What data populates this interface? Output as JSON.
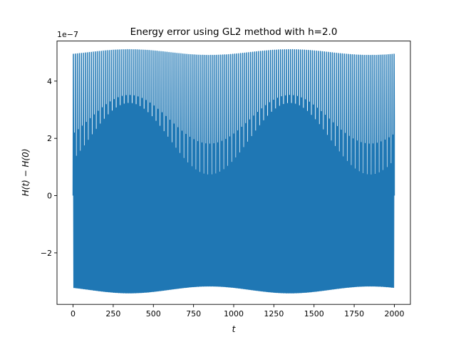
{
  "chart_data": {
    "type": "line",
    "title": "Energy error using GL2 method with h=2.0",
    "xlabel": "t",
    "ylabel": "H(t) − H(0)",
    "y_multiplier_label": "1e−7",
    "xlim": [
      -100,
      2100
    ],
    "ylim": [
      -3.8e-07,
      5.4e-07
    ],
    "x_ticks": [
      0,
      250,
      500,
      750,
      1000,
      1250,
      1500,
      1750,
      2000
    ],
    "x_tick_labels": [
      "0",
      "250",
      "500",
      "750",
      "1000",
      "1250",
      "1500",
      "1750",
      "2000"
    ],
    "y_ticks": [
      -2e-07,
      0,
      2e-07,
      4e-07
    ],
    "y_tick_labels": [
      "−2",
      "0",
      "2",
      "4"
    ],
    "grid": false,
    "legend": "none",
    "series": [
      {
        "color": "#1f77b4",
        "t_start": 0,
        "t_end": 2000,
        "step": 2.0,
        "signal": {
          "fast_period": 22.5,
          "upper_peak_min": 4.9e-07,
          "upper_peak_max": 5.1e-07,
          "inner_peak_min": 1.8e-07,
          "inner_peak_max": 3.5e-07,
          "lower_peak_min": -3.4e-07,
          "lower_peak_max": -3e-07,
          "envelope_period": 1000
        },
        "endpoints": [
          {
            "t": 0,
            "value": 0
          },
          {
            "t": 2000,
            "value": 0
          }
        ]
      }
    ]
  }
}
